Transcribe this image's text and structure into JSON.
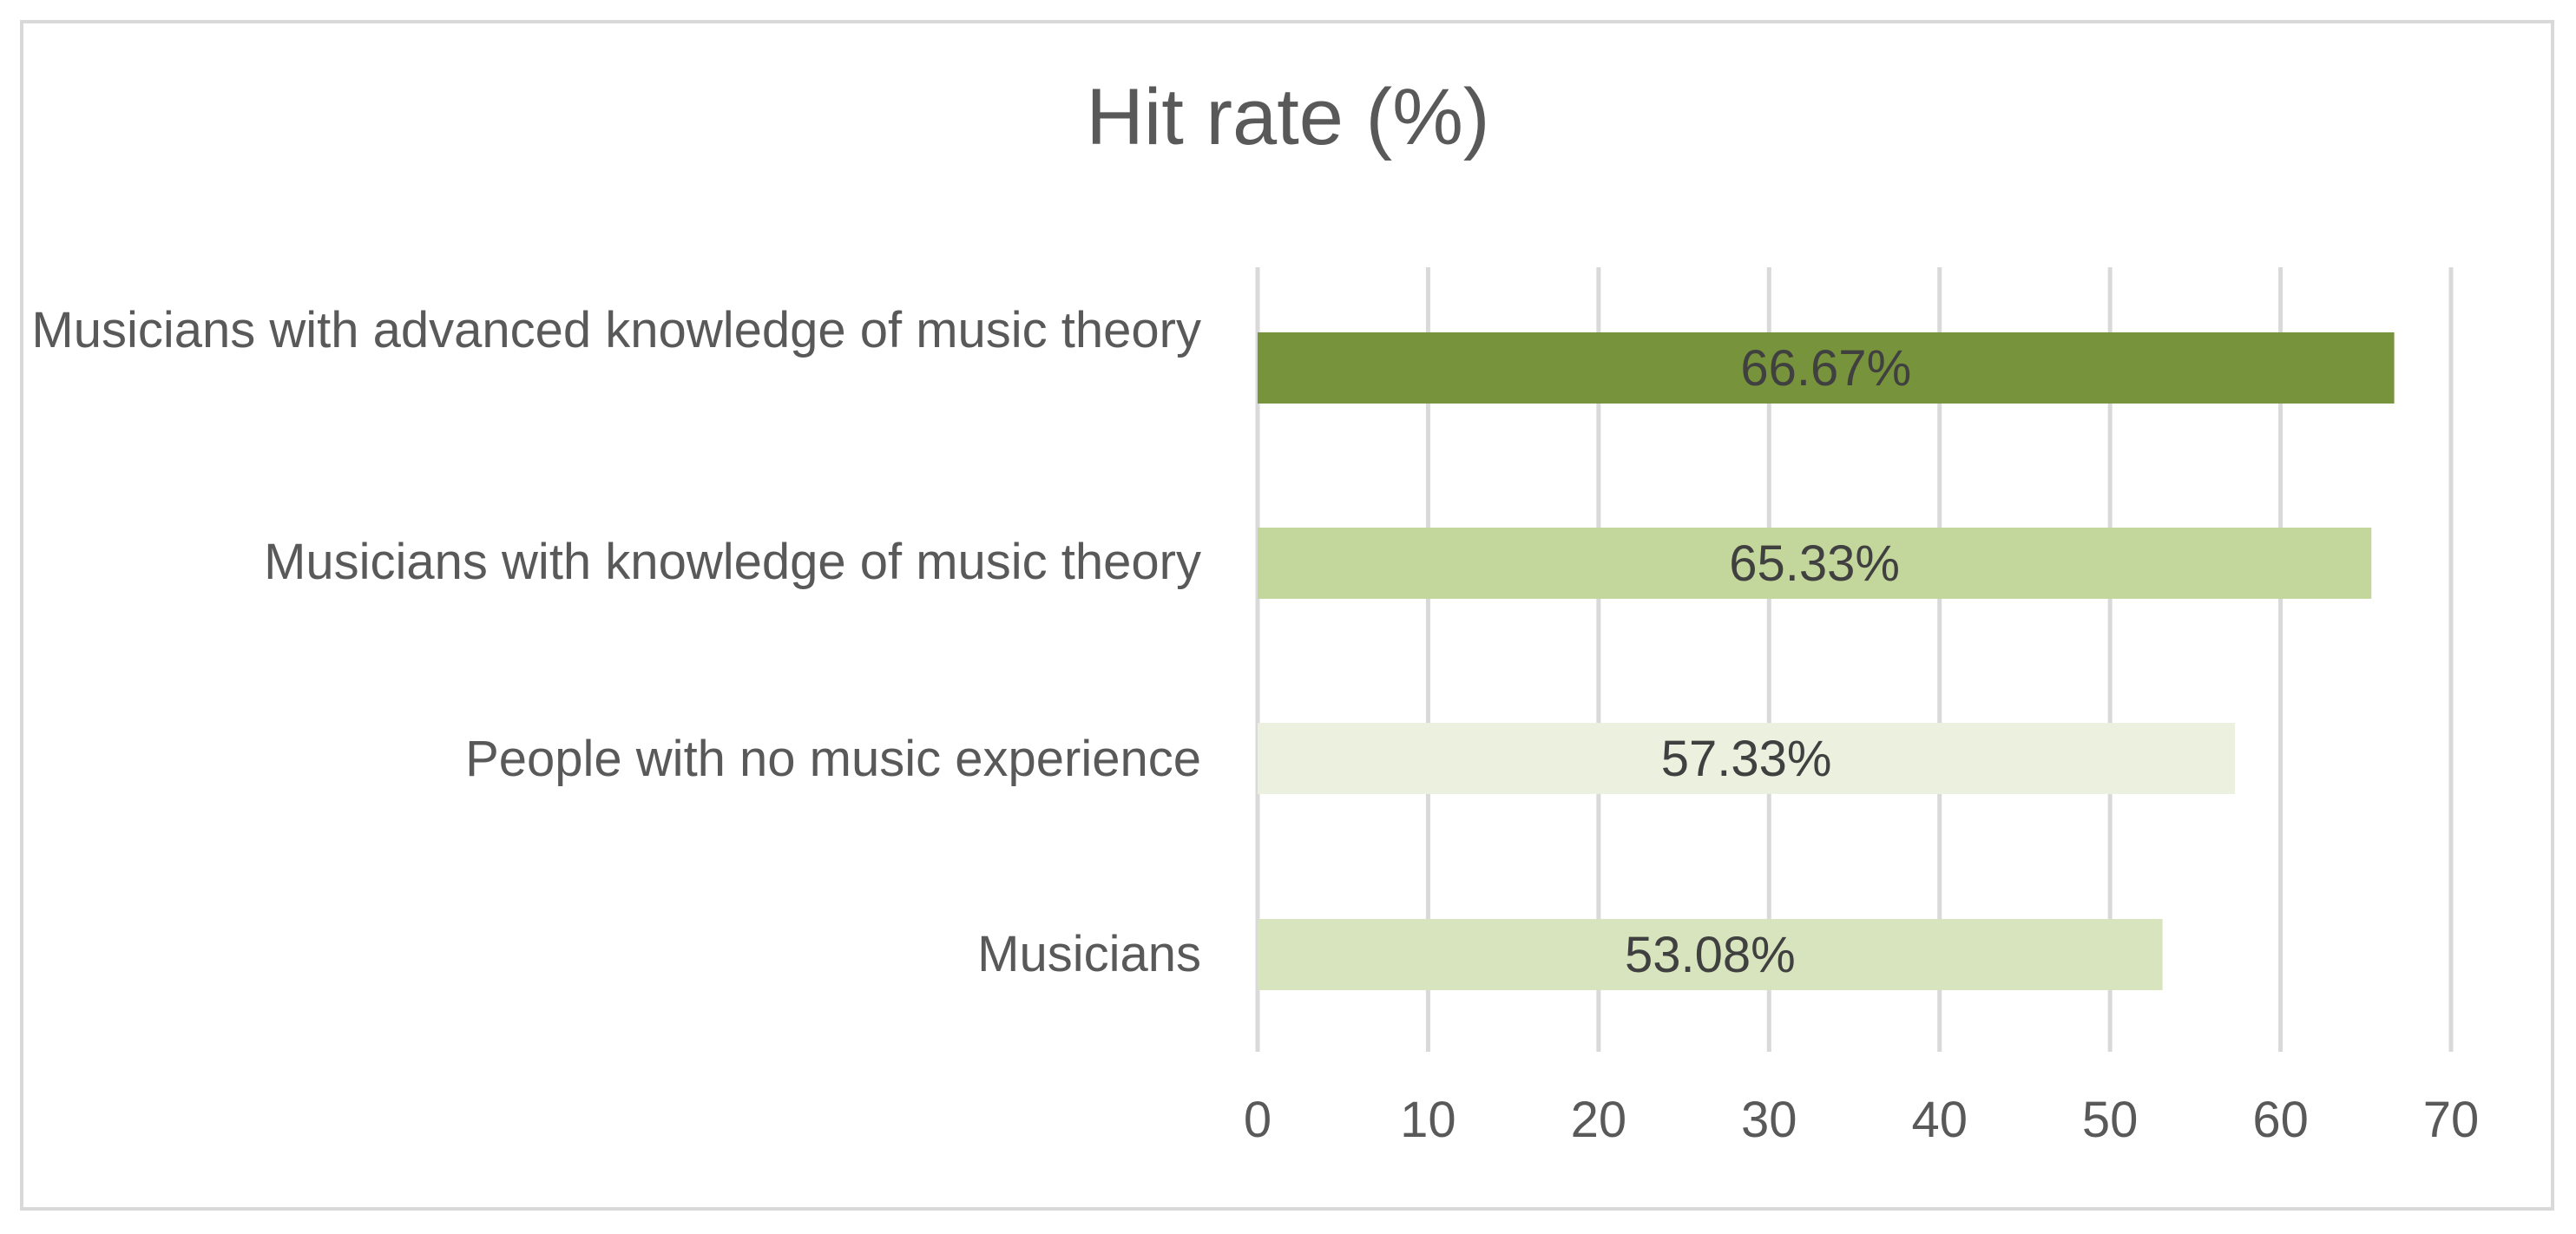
{
  "chart_data": {
    "type": "bar",
    "orientation": "horizontal",
    "title": "Hit rate (%)",
    "xlabel": "",
    "ylabel": "",
    "categories": [
      "Musicians with advanced knowledge of music theory",
      "Musicians with knowledge of music theory",
      "People with no music experience",
      "Musicians"
    ],
    "values": [
      66.67,
      65.33,
      57.33,
      53.08
    ],
    "data_labels": [
      "66.67%",
      "65.33%",
      "57.33%",
      "53.08%"
    ],
    "bar_colors": [
      "#77933c",
      "#c3d69b",
      "#ebf1de",
      "#d7e4bd"
    ],
    "xlim": [
      0,
      70
    ],
    "xticks": [
      "0",
      "10",
      "20",
      "30",
      "40",
      "50",
      "60",
      "70"
    ],
    "grid": "vertical",
    "legend": "none"
  },
  "colors": {
    "gridline": "#d9d9d9",
    "text": "#595959",
    "data_label": "#404040"
  }
}
